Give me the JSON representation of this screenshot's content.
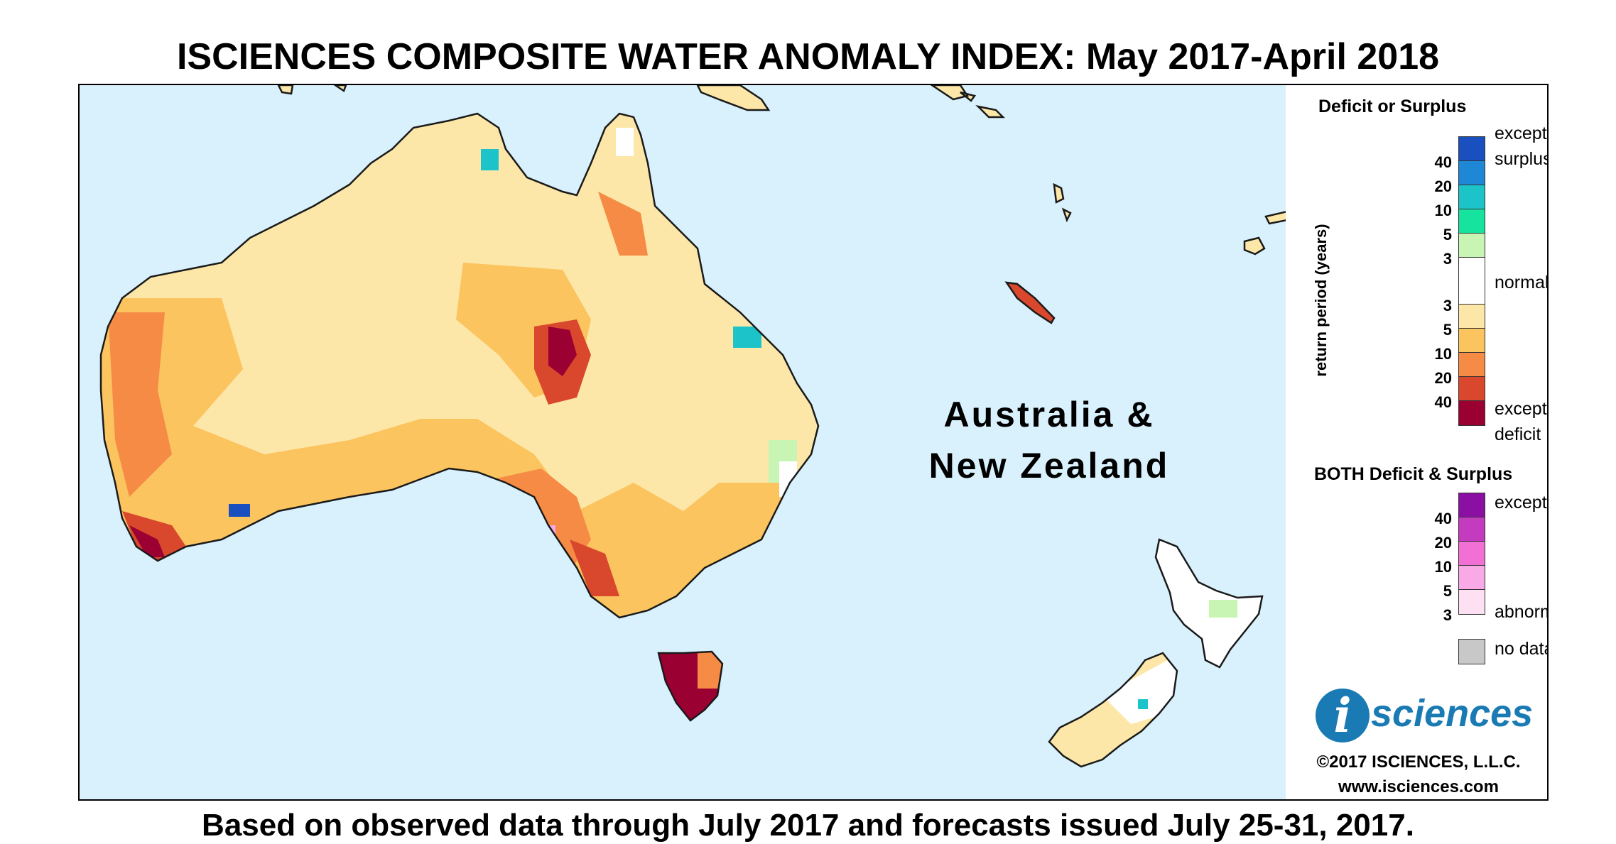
{
  "title": "ISCIENCES COMPOSITE WATER ANOMALY INDEX: May 2017-April 2018",
  "footer": "Based on observed data through July 2017 and forecasts issued July 25-31, 2017.",
  "region_label": [
    "Australia &",
    "New Zealand"
  ],
  "legend": {
    "deficit_surplus_title": "Deficit or Surplus",
    "both_title": "BOTH Deficit & Surplus",
    "axis_label": "return period (years)",
    "text_exceptional_surplus_1": "exceptional",
    "text_exceptional_surplus_2": "surplus",
    "text_normal": "normal",
    "text_exceptional_deficit_1": "exceptional",
    "text_exceptional_deficit_2": "deficit",
    "text_both_exceptional": "exceptional",
    "text_both_abnormal": "abnormal",
    "text_no_data": "no data",
    "surplus_numbers": [
      "40",
      "20",
      "10",
      "5",
      "3"
    ],
    "deficit_numbers": [
      "3",
      "5",
      "10",
      "20",
      "40"
    ],
    "both_numbers": [
      "40",
      "20",
      "10",
      "5",
      "3"
    ],
    "surplus_colors": [
      "#1a4fbf",
      "#1e88d6",
      "#1cc4c9",
      "#16e39e",
      "#c8f5b4"
    ],
    "normal_color": "#ffffff",
    "deficit_colors": [
      "#fde7a8",
      "#fbc45f",
      "#f68b45",
      "#d9472d",
      "#9b0033"
    ],
    "both_colors": [
      "#8b0fa3",
      "#c43bc0",
      "#f26fd6",
      "#f8a9e6",
      "#fde0f1"
    ],
    "no_data_color": "#c8c8c8"
  },
  "map_colors": {
    "ocean": "#d9f1fc",
    "land_base": "#fde7a8",
    "mid_deficit": "#fbc45f",
    "strong_deficit": "#f68b45",
    "severe_deficit": "#d9472d",
    "exceptional_deficit": "#9b0033",
    "surplus_light": "#c8f5b4",
    "surplus_teal": "#1cc4c9",
    "surplus_blue": "#1a4fbf",
    "both_pink": "#f8a9e6",
    "both_purple": "#c43bc0",
    "normal": "#ffffff",
    "outline": "#1a1a1a"
  },
  "logo": {
    "mark": "i",
    "word": "sciences",
    "icon": "isciences-logo-icon"
  },
  "copyright": "©2017 ISCIENCES, L.L.C.",
  "url": "www.isciences.com"
}
